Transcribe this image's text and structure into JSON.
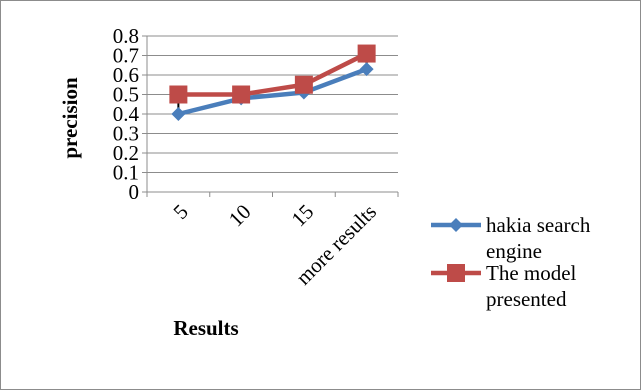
{
  "chart_data": {
    "type": "line",
    "categories": [
      "5",
      "10",
      "15",
      "more results"
    ],
    "xlabel": "Results",
    "ylabel": "precision",
    "ylim": [
      0,
      0.8
    ],
    "yticks": [
      "0",
      "0.1",
      "0.2",
      "0.3",
      "0.4",
      "0.5",
      "0.6",
      "0.7",
      "0.8"
    ],
    "grid": true,
    "legend_position": "right",
    "series": [
      {
        "name": "hakia search engine",
        "name_lines": [
          "hakia search",
          "engine"
        ],
        "values": [
          0.4,
          0.48,
          0.51,
          0.63
        ],
        "color": "#4a7ebb",
        "marker": "diamond"
      },
      {
        "name": "The model presented",
        "name_lines": [
          "The model",
          "presented"
        ],
        "values": [
          0.5,
          0.5,
          0.55,
          0.71
        ],
        "color": "#be4b48",
        "marker": "square"
      }
    ]
  }
}
